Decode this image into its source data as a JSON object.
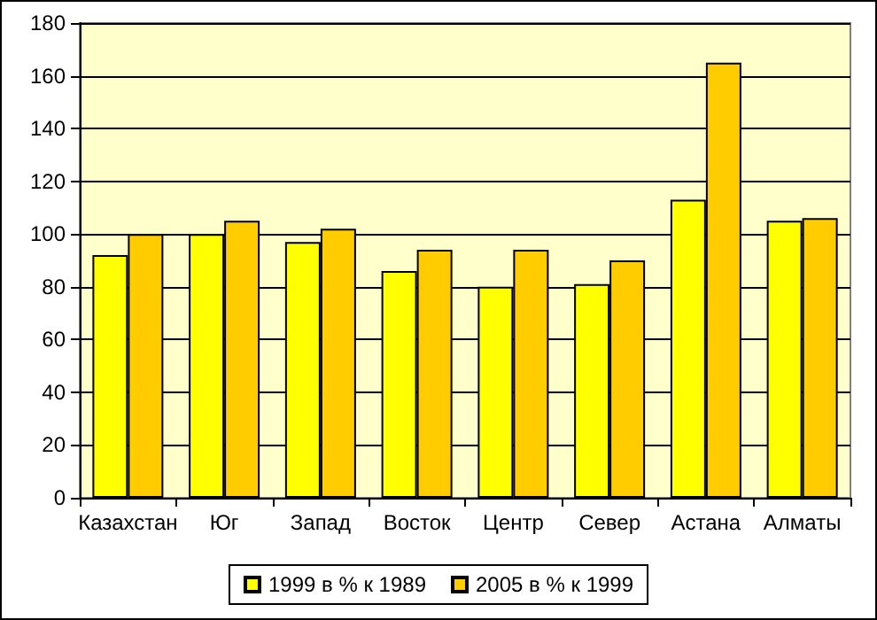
{
  "chart_data": {
    "type": "bar",
    "categories": [
      "Казахстан",
      "Юг",
      "Запад",
      "Восток",
      "Центр",
      "Север",
      "Астана",
      "Алматы"
    ],
    "series": [
      {
        "name": "1999 в % к 1989",
        "color": "#ffff00",
        "values": [
          92,
          100,
          97,
          86,
          80,
          81,
          113,
          105
        ]
      },
      {
        "name": "2005 в % к 1999",
        "color": "#ffcc00",
        "values": [
          100,
          105,
          102,
          94,
          94,
          90,
          165,
          106
        ]
      }
    ],
    "ylim": [
      0,
      180
    ],
    "yticks": [
      0,
      20,
      40,
      60,
      80,
      100,
      120,
      140,
      160,
      180
    ],
    "grid": "y",
    "legend": "bottom"
  }
}
